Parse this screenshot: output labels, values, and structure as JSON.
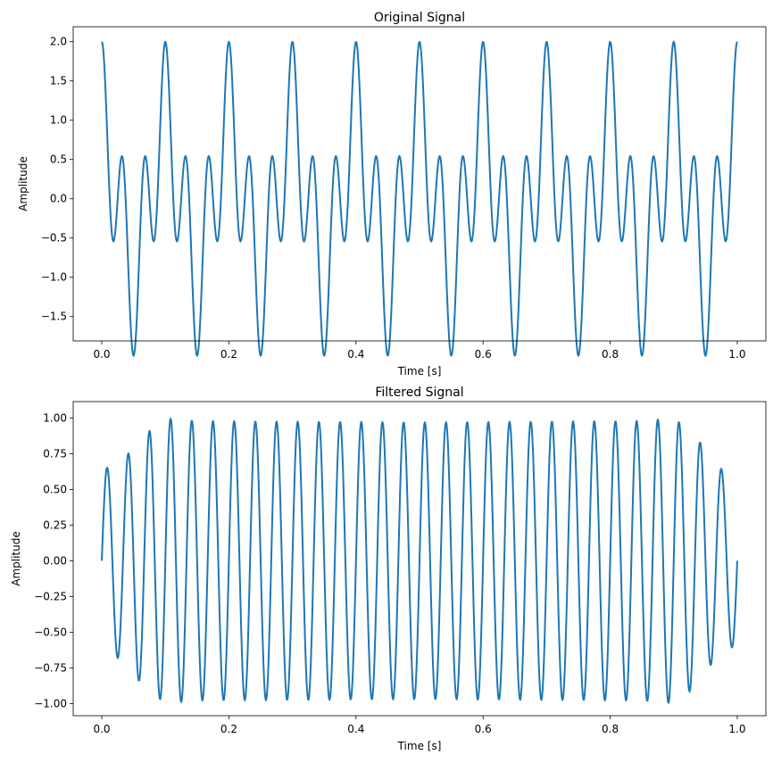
{
  "chart_data": [
    {
      "type": "line",
      "title": "Original Signal",
      "xlabel": "Time [s]",
      "ylabel": "Amplitude",
      "xlim": [
        -0.045,
        1.045
      ],
      "ylim": [
        -1.81,
        2.19
      ],
      "xticks": [
        0.0,
        0.2,
        0.4,
        0.6,
        0.8,
        1.0
      ],
      "xtick_labels": [
        "0.0",
        "0.2",
        "0.4",
        "0.6",
        "0.8",
        "1.0"
      ],
      "yticks": [
        -1.5,
        -1.0,
        -0.5,
        0.0,
        0.5,
        1.0,
        1.5,
        2.0
      ],
      "ytick_labels": [
        "−1.5",
        "−1.0",
        "−0.5",
        "0.0",
        "0.5",
        "1.0",
        "1.5",
        "2.0"
      ],
      "color": "#1f77b4",
      "series": [
        {
          "name": "original",
          "expression": "cos(2*pi*10*t) + cos(2*pi*30*t)",
          "components": [
            {
              "amplitude": 1,
              "frequency_hz": 10
            },
            {
              "amplitude": 1,
              "frequency_hz": 30
            }
          ],
          "t_range": [
            0,
            1
          ],
          "samples": 1000
        }
      ]
    },
    {
      "type": "line",
      "title": "Filtered Signal",
      "xlabel": "Time [s]",
      "ylabel": "Amplitude",
      "xlim": [
        -0.045,
        1.045
      ],
      "ylim": [
        -1.085,
        1.115
      ],
      "xticks": [
        0.0,
        0.2,
        0.4,
        0.6,
        0.8,
        1.0
      ],
      "xtick_labels": [
        "0.0",
        "0.2",
        "0.4",
        "0.6",
        "0.8",
        "1.0"
      ],
      "yticks": [
        -1.0,
        -0.75,
        -0.5,
        -0.25,
        0.0,
        0.25,
        0.5,
        0.75,
        1.0
      ],
      "ytick_labels": [
        "−1.00",
        "−0.75",
        "−0.50",
        "−0.25",
        "0.00",
        "0.25",
        "0.50",
        "0.75",
        "1.00"
      ],
      "color": "#1f77b4",
      "series": [
        {
          "name": "filtered",
          "expression": "approximately sin(2*pi*30*t) with transient edges",
          "frequency_hz": 30,
          "amplitude": 1.0,
          "t_range": [
            0,
            1
          ],
          "samples": 1000
        }
      ]
    }
  ]
}
